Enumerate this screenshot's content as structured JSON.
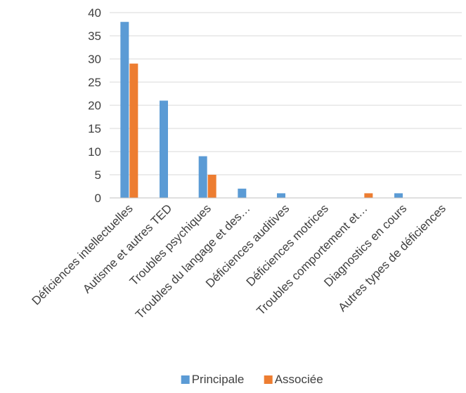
{
  "chart_data": {
    "type": "bar",
    "categories": [
      "Déficiences intellectuelles",
      "Autisme et autres TED",
      "Troubles psychiques",
      "Troubles du langage et des…",
      "Déficiences auditives",
      "Déficiences motrices",
      "Troubles comportement et…",
      "Diagnostics en cours",
      "Autres types de déficiences"
    ],
    "series": [
      {
        "name": "Principale",
        "color": "#5b9bd5",
        "values": [
          38,
          21,
          9,
          2,
          1,
          0,
          0,
          1,
          0
        ]
      },
      {
        "name": "Associée",
        "color": "#ed7d31",
        "values": [
          29,
          0,
          5,
          0,
          0,
          0,
          1,
          0,
          0
        ]
      }
    ],
    "ylim": [
      0,
      40
    ],
    "yticks": [
      0,
      5,
      10,
      15,
      20,
      25,
      30,
      35,
      40
    ],
    "grid": true,
    "legend_position": "bottom"
  }
}
